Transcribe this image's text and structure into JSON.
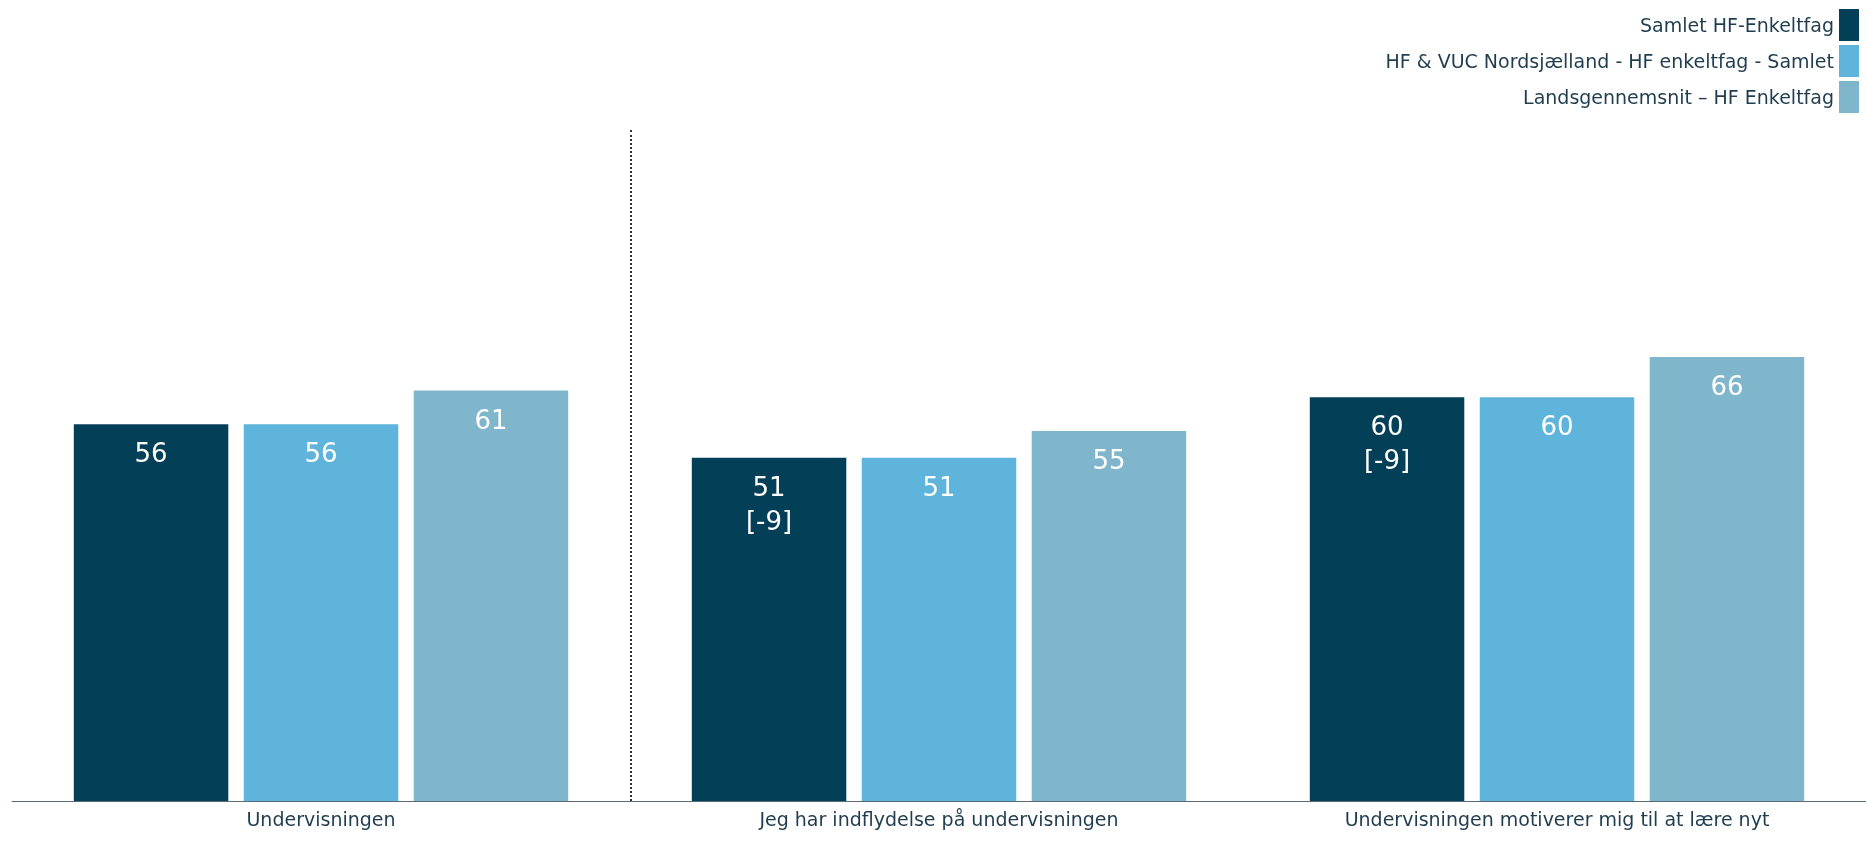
{
  "chart_data": {
    "type": "bar",
    "categories": [
      "Undervisningen",
      "Jeg har indflydelse på undervisningen",
      "Undervisningen motiverer mig til at lære nyt"
    ],
    "series": [
      {
        "name": "Samlet HF-Enkeltfag",
        "color": "#043f58",
        "values": [
          56,
          51,
          60
        ],
        "value_labels": [
          "56",
          "51\n[-9]",
          "60\n[-9]"
        ]
      },
      {
        "name": "HF & VUC Nordsjælland - HF enkeltfag - Samlet",
        "color": "#5eb4da",
        "values": [
          56,
          51,
          60
        ],
        "value_labels": [
          "56",
          "51",
          "60"
        ]
      },
      {
        "name": "Landsgennemsnit – HF Enkeltfag",
        "color": "#80b6cb",
        "values": [
          61,
          55,
          66
        ],
        "value_labels": [
          "61",
          "55",
          "66"
        ]
      }
    ],
    "legend": "top right",
    "tick_labels": "x"
  }
}
